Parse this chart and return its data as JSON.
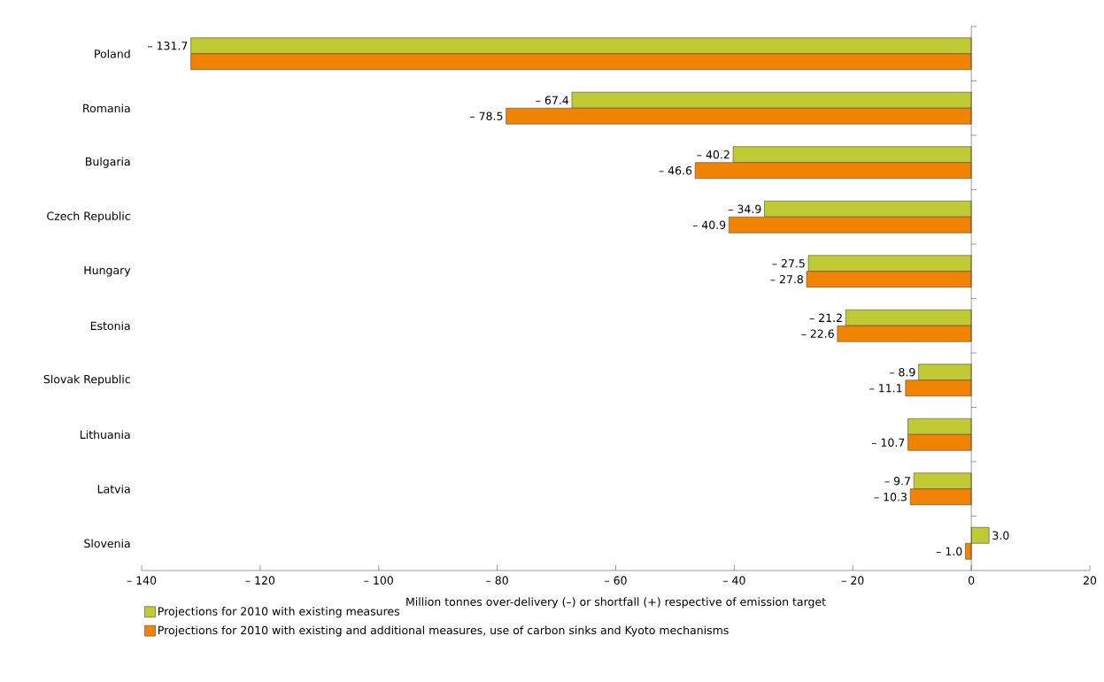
{
  "chart_data": {
    "type": "bar",
    "orientation": "horizontal",
    "categories": [
      "Poland",
      "Romania",
      "Bulgaria",
      "Czech Republic",
      "Hungary",
      "Estonia",
      "Slovak Republic",
      "Lithuania",
      "Latvia",
      "Slovenia"
    ],
    "xlabel": "Million tonnes over-delivery (–) or shortfall (+) respective of emission target",
    "xlim": [
      -140,
      20
    ],
    "xticks": [
      {
        "value": -140,
        "label": "– 140"
      },
      {
        "value": -120,
        "label": "– 120"
      },
      {
        "value": -100,
        "label": "– 100"
      },
      {
        "value": -80,
        "label": "– 80"
      },
      {
        "value": -60,
        "label": "– 60"
      },
      {
        "value": -40,
        "label": "– 40"
      },
      {
        "value": -20,
        "label": "– 20"
      },
      0,
      20
    ],
    "series": [
      {
        "name": "Projections for 2010 with existing measures",
        "color": "#bfca34",
        "values": [
          -131.7,
          -67.4,
          -40.2,
          -34.9,
          -27.5,
          -21.2,
          -8.9,
          -10.7,
          -9.7,
          3.0
        ],
        "value_labels": [
          "– 131.7",
          "– 67.4",
          "– 40.2",
          "– 34.9",
          "– 27.5",
          "– 21.2",
          "– 8.9",
          null,
          "– 9.7",
          "3.0"
        ]
      },
      {
        "name": "Projections for 2010 with existing and additional measures, use of carbon sinks and Kyoto mechanisms",
        "color": "#f08300",
        "values": [
          -131.7,
          -78.5,
          -46.6,
          -40.9,
          -27.8,
          -22.6,
          -11.1,
          -10.7,
          -10.3,
          -1.0
        ],
        "value_labels": [
          null,
          "– 78.5",
          "– 46.6",
          "– 40.9",
          "– 27.8",
          "– 22.6",
          "– 11.1",
          "– 10.7",
          "– 10.3",
          "– 1.0"
        ]
      }
    ],
    "legend": "bottom"
  }
}
